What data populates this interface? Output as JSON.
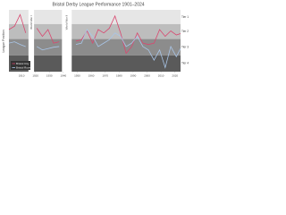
{
  "chart_data": {
    "type": "line",
    "title": "Bristol Derby League Performance 1901–2024",
    "y_label": "League Position",
    "x": [
      1901,
      1905,
      1909,
      1913,
      1917,
      1921,
      1925,
      1929,
      1933,
      1937,
      1941,
      1945,
      1949,
      1953,
      1957,
      1961,
      1965,
      1969,
      1973,
      1977,
      1981,
      1985,
      1989,
      1993,
      1997,
      2001,
      2005,
      2009,
      2013,
      2017,
      2021,
      2024
    ],
    "series": [
      {
        "name": "Bristol City",
        "color": "#d9476f",
        "values": [
          30,
          25,
          8,
          35,
          null,
          28,
          40,
          30,
          50,
          48,
          null,
          null,
          47,
          45,
          32,
          50,
          30,
          35,
          28,
          10,
          35,
          65,
          55,
          35,
          50,
          52,
          50,
          30,
          40,
          32,
          38,
          36
        ]
      },
      {
        "name": "Bristol Rovers",
        "color": "#a9c6e8",
        "values": [
          50,
          48,
          52,
          55,
          null,
          55,
          60,
          58,
          56,
          55,
          null,
          null,
          52,
          50,
          30,
          40,
          55,
          50,
          45,
          35,
          40,
          55,
          50,
          40,
          55,
          60,
          75,
          60,
          86,
          55,
          70,
          58
        ]
      }
    ],
    "xlim": [
      1901,
      2024
    ],
    "ylim": [
      92,
      1
    ],
    "xticks": [
      1910,
      1920,
      1930,
      1940,
      1950,
      1960,
      1970,
      1980,
      1990,
      2000,
      2010,
      2020
    ],
    "tiers": [
      {
        "label": "Tier 1",
        "from": 1,
        "to": 22,
        "color": "#e6e6e6"
      },
      {
        "label": "Tier 2",
        "from": 22,
        "to": 44,
        "color": "#bdbdbd"
      },
      {
        "label": "Tier 3",
        "from": 44,
        "to": 68,
        "color": "#8c8c8c"
      },
      {
        "label": "Tier 4",
        "from": 68,
        "to": 92,
        "color": "#5a5a5a"
      }
    ],
    "annotations": [
      {
        "text": "World War I",
        "from": 1915,
        "to": 1919
      },
      {
        "text": "World War II",
        "from": 1939,
        "to": 1946
      }
    ]
  }
}
